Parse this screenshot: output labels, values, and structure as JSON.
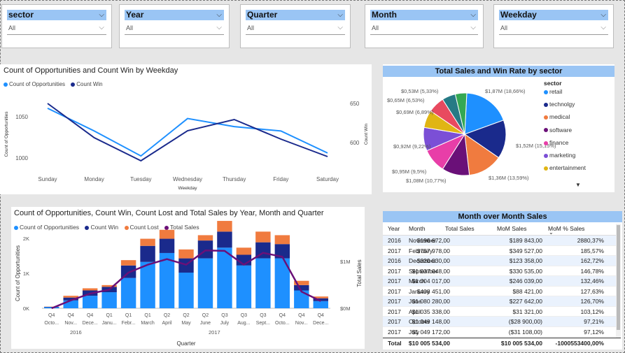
{
  "slicers": [
    {
      "title": "sector",
      "value": "All"
    },
    {
      "title": "Year",
      "value": "All"
    },
    {
      "title": "Quarter",
      "value": "All"
    },
    {
      "title": "Month",
      "value": "All"
    },
    {
      "title": "Weekday",
      "value": "All"
    }
  ],
  "weekday_chart": {
    "title": "Count of Opportunities and Count Win by Weekday",
    "legend": [
      "Count of Opportunities",
      "Count Win"
    ],
    "xlabel": "Weekday",
    "ylabel_left": "Count of Opportunities",
    "ylabel_right": "Count Win",
    "yticks_left": [
      "1050",
      "1000"
    ],
    "yticks_right": [
      "650",
      "600"
    ],
    "colors": [
      "#1e90ff",
      "#1a2a8c"
    ]
  },
  "sector_chart": {
    "title": "Total Sales and Win Rate by sector",
    "legend_title": "sector",
    "more_indicator": "▼",
    "slice_labels": [
      "$1,87M (18,66%)",
      "$1,52M (15,15%)",
      "$1,36M (13,59%)",
      "$1,08M (10,77%)",
      "$0,95M (9,5%)",
      "$0,92M (9,22%)",
      "$0,69M (6,89%)",
      "$0,65M (6,53%)",
      "$0,53M (5,33%)"
    ]
  },
  "ymq_chart": {
    "title": "Count of Opportunities, Count Win, Count Lost and Total Sales by Year, Month and Quarter",
    "legend": [
      "Count of Opportunities",
      "Count Win",
      "Count Lost",
      "Total Sales"
    ],
    "ylabel_left": "Count of Opportunities",
    "ylabel_right": "Total Sales",
    "xlabel": "Quarter",
    "yticks_left": [
      "2K",
      "1K",
      "0K"
    ],
    "yticks_right": [
      "$1M",
      "$0M"
    ],
    "quarter_labels": [
      "Q4",
      "Q4",
      "Q4",
      "Q1",
      "Q1",
      "Q1",
      "Q2",
      "Q2",
      "Q2",
      "Q3",
      "Q3",
      "Q3",
      "Q4",
      "Q4",
      "Q4"
    ],
    "month_labels": [
      "Octo...",
      "Nov...",
      "Dece...",
      "Janu...",
      "Febr...",
      "March",
      "April",
      "May",
      "June",
      "July",
      "Aug...",
      "Sept...",
      "Octo...",
      "Nov...",
      "Dece..."
    ],
    "year_labels": [
      "2016",
      "2017"
    ],
    "colors": {
      "opportunities": "#1e90ff",
      "win": "#1a2a8c",
      "lost": "#f07b3f",
      "sales": "#6a1078"
    }
  },
  "chart_data": [
    {
      "type": "line",
      "title": "Count of Opportunities and Count Win by Weekday",
      "xlabel": "Weekday",
      "categories": [
        "Sunday",
        "Monday",
        "Tuesday",
        "Wednesday",
        "Thursday",
        "Friday",
        "Saturday"
      ],
      "series": [
        {
          "name": "Count of Opportunities",
          "axis": "left",
          "values": [
            1063,
            1032,
            998,
            1049,
            1038,
            1032,
            1002
          ]
        },
        {
          "name": "Count Win",
          "axis": "right",
          "values": [
            654,
            605,
            572,
            615,
            631,
            603,
            578
          ]
        }
      ],
      "ylim_left": [
        980,
        1080
      ],
      "ylim_right": [
        560,
        665
      ]
    },
    {
      "type": "pie",
      "title": "Total Sales and Win Rate by sector",
      "legend_title": "sector",
      "legend_placement": "right",
      "categories": [
        "retail",
        "technolgy",
        "medical",
        "software",
        "finance",
        "marketing",
        "entertainment",
        "",
        "",
        ""
      ],
      "values_millions": [
        1.87,
        1.52,
        1.36,
        1.08,
        0.95,
        0.92,
        0.69,
        0.65,
        0.53,
        0.45
      ],
      "percent": [
        18.66,
        15.15,
        13.59,
        10.77,
        9.5,
        9.22,
        6.89,
        6.53,
        5.33,
        4.5
      ],
      "colors": [
        "#1e90ff",
        "#1a2a8c",
        "#f07b3f",
        "#6a1078",
        "#e83ea8",
        "#7b4fd6",
        "#e0b514",
        "#e84a5f",
        "#267a85",
        "#34a853"
      ]
    },
    {
      "type": "bar",
      "title": "Count of Opportunities, Count Win, Count Lost and Total Sales by Year, Month and Quarter",
      "xlabel": "Quarter",
      "categories": [
        "2016 Q4 Octo...",
        "2016 Q4 Nov...",
        "2016 Q4 Dece...",
        "2017 Q1 Janu...",
        "2017 Q1 Febr...",
        "2017 Q1 March",
        "2017 Q2 April",
        "2017 Q2 May",
        "2017 Q2 June",
        "2017 Q3 July",
        "2017 Q3 Aug...",
        "2017 Q3 Sept...",
        "2017 Q4 Octo...",
        "2017 Q4 Nov...",
        "2017 Q4 Dece..."
      ],
      "series": [
        {
          "name": "Count of Opportunities",
          "axis": "left",
          "values": [
            30,
            220,
            350,
            450,
            850,
            1300,
            1550,
            1000,
            1400,
            1700,
            1200,
            1400,
            1400,
            500,
            200
          ]
        },
        {
          "name": "Count Win",
          "axis": "left",
          "values": [
            10,
            80,
            150,
            150,
            350,
            450,
            400,
            400,
            500,
            450,
            300,
            450,
            400,
            150,
            80
          ]
        },
        {
          "name": "Count Lost",
          "axis": "left",
          "values": [
            5,
            50,
            60,
            50,
            150,
            200,
            250,
            250,
            150,
            300,
            200,
            300,
            250,
            120,
            50
          ]
        },
        {
          "name": "Total Sales",
          "axis": "right",
          "values_millions": [
            0.0,
            0.2,
            0.37,
            0.47,
            0.9,
            1.1,
            1.24,
            1.1,
            1.46,
            1.45,
            1.1,
            1.4,
            1.3,
            0.42,
            0.18
          ]
        }
      ],
      "ylim_left": [
        0,
        2000
      ],
      "ylim_right": [
        0,
        1.8
      ]
    }
  ],
  "mom_table": {
    "title": "Month over Month Sales",
    "columns": [
      "Year",
      "Month",
      "Total Sales",
      "MoM Sales",
      "MoM % Sales"
    ],
    "rows": [
      [
        "2016",
        "November",
        "$196 672,00",
        "$189 843,00",
        "2880,37%"
      ],
      [
        "2017",
        "February",
        "$757 978,00",
        "$349 527,00",
        "185,57%"
      ],
      [
        "2016",
        "December",
        "$320 030,00",
        "$123 358,00",
        "162,72%"
      ],
      [
        "2017",
        "September",
        "$1 037 048,00",
        "$330 535,00",
        "146,78%"
      ],
      [
        "2017",
        "March",
        "$1 004 017,00",
        "$246 039,00",
        "132,46%"
      ],
      [
        "2017",
        "January",
        "$408 451,00",
        "$88 421,00",
        "127,63%"
      ],
      [
        "2017",
        "June",
        "$1 080 280,00",
        "$227 642,00",
        "126,70%"
      ],
      [
        "2017",
        "April",
        "$1 035 338,00",
        "$31 321,00",
        "103,12%"
      ],
      [
        "2017",
        "October",
        "$1 049 148,00",
        "($28 900,00)",
        "97,21%"
      ],
      [
        "2017",
        "July",
        "$1 049 172,00",
        "($31 108,00)",
        "97,12%"
      ]
    ],
    "total": [
      "Total",
      "",
      "$10 005 534,00",
      "$10 005 534,00",
      "-1000553400,00%"
    ],
    "sort_indicator": "⌄"
  }
}
